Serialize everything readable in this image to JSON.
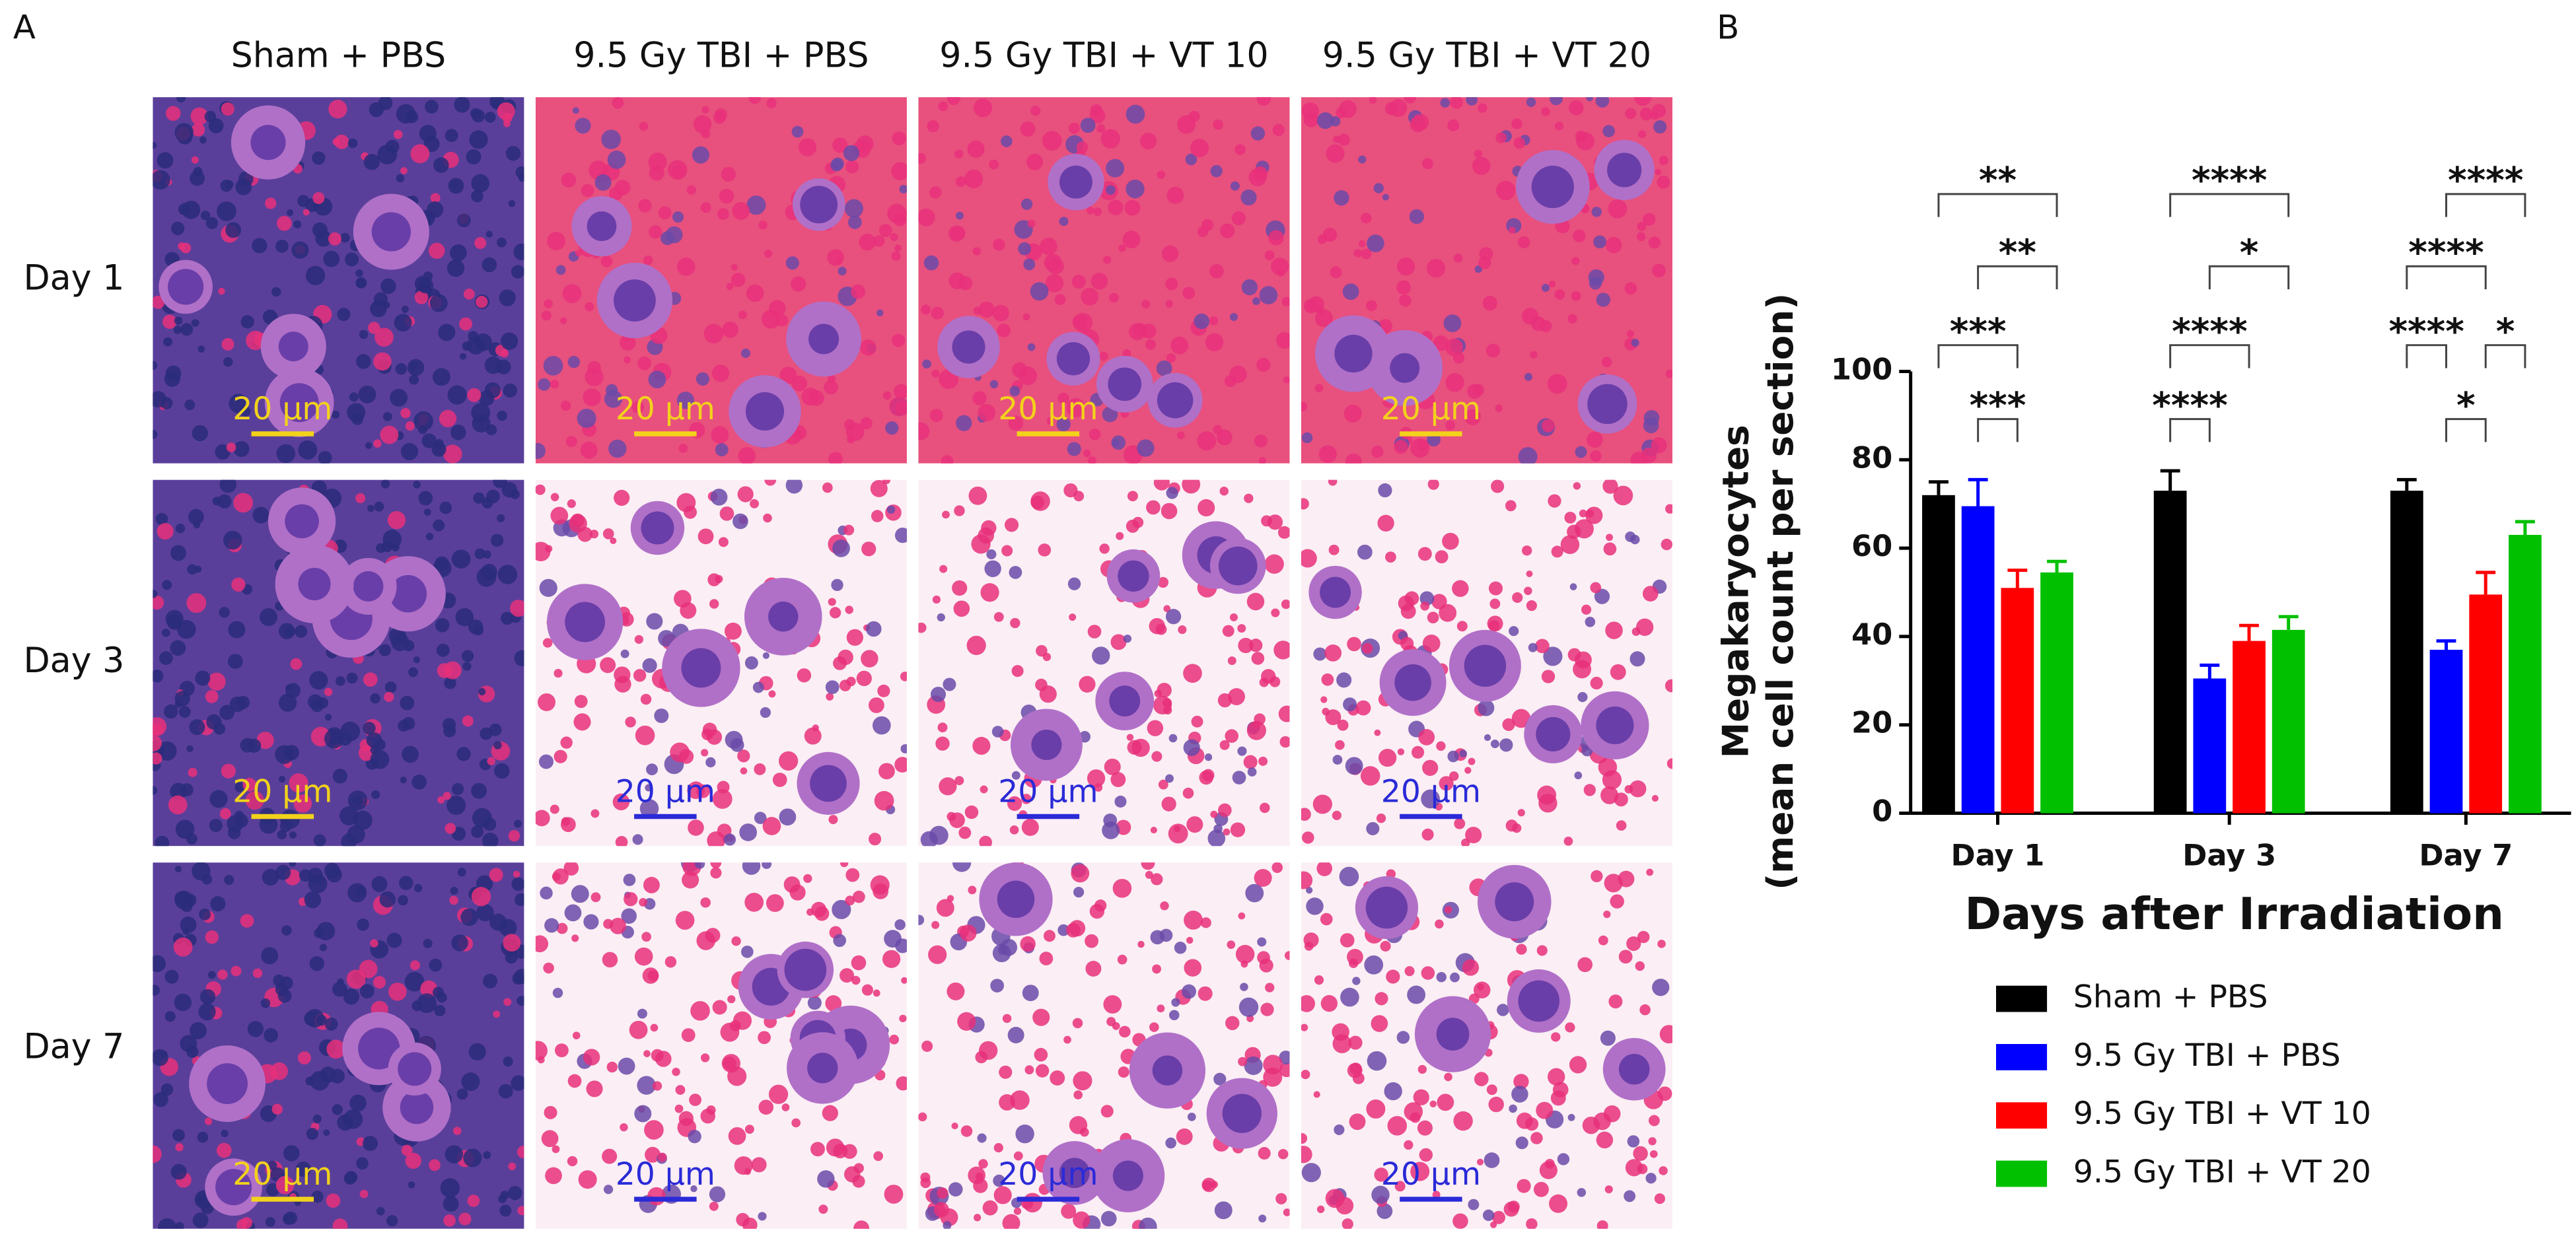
{
  "panel_a": {
    "label": "A",
    "columns": [
      "Sham + PBS",
      "9.5 Gy TBI + PBS",
      "9.5 Gy TBI + VT 10",
      "9.5 Gy TBI + VT 20"
    ],
    "rows": [
      "Day 1",
      "Day 3",
      "Day 7"
    ],
    "tiles": [
      [
        {
          "scale_bar": "20 µm",
          "color": "#f2d21b"
        },
        {
          "scale_bar": "20 µm",
          "color": "#f2d21b"
        },
        {
          "scale_bar": "20 µm",
          "color": "#f2d21b"
        },
        {
          "scale_bar": "20 µm",
          "color": "#f2d21b"
        }
      ],
      [
        {
          "scale_bar": "20 µm",
          "color": "#f2d21b"
        },
        {
          "scale_bar": "20 µm",
          "color": "#2a2ad8"
        },
        {
          "scale_bar": "20 µm",
          "color": "#2a2ad8"
        },
        {
          "scale_bar": "20 µm",
          "color": "#2a2ad8"
        }
      ],
      [
        {
          "scale_bar": "20 µm",
          "color": "#f2d21b"
        },
        {
          "scale_bar": "20 µm",
          "color": "#2a2ad8"
        },
        {
          "scale_bar": "20 µm",
          "color": "#2a2ad8"
        },
        {
          "scale_bar": "20 µm",
          "color": "#2a2ad8"
        }
      ]
    ]
  },
  "chart_data": {
    "type": "bar",
    "panel_label": "B",
    "x_label": "Days after Irradiation",
    "y_label": [
      "Megakaryocytes",
      "(mean cell count per section)"
    ],
    "categories": [
      "Day 1",
      "Day 3",
      "Day 7"
    ],
    "series": [
      {
        "name": "Sham + PBS",
        "color": "#000000",
        "values": [
          72,
          73,
          73
        ],
        "errors": [
          3,
          4.5,
          2.5
        ]
      },
      {
        "name": "9.5 Gy TBI + PBS",
        "color": "#0000ff",
        "values": [
          69.5,
          30.5,
          37
        ],
        "errors": [
          6,
          3,
          2
        ]
      },
      {
        "name": "9.5 Gy TBI + VT 10",
        "color": "#ff0000",
        "values": [
          51,
          39,
          49.5
        ],
        "errors": [
          4,
          3.5,
          5
        ]
      },
      {
        "name": "9.5 Gy TBI + VT 20",
        "color": "#00c000",
        "values": [
          54.5,
          41.5,
          63
        ],
        "errors": [
          2.5,
          3,
          3
        ]
      }
    ],
    "ylim": [
      0,
      100
    ],
    "yticks": [
      0,
      20,
      40,
      60,
      80,
      100
    ],
    "legend": "bottom",
    "significance": [
      [
        [
          {
            "pair": [
              1,
              2
            ],
            "label": "***"
          }
        ],
        [
          {
            "pair": [
              0,
              2
            ],
            "label": "***"
          }
        ],
        [
          {
            "pair": [
              1,
              3
            ],
            "label": "**"
          }
        ],
        [
          {
            "pair": [
              0,
              3
            ],
            "label": "**"
          }
        ]
      ],
      [
        [
          {
            "pair": [
              0,
              1
            ],
            "label": "****"
          }
        ],
        [
          {
            "pair": [
              0,
              2
            ],
            "label": "****"
          }
        ],
        [
          {
            "pair": [
              1,
              3
            ],
            "label": "*"
          }
        ],
        [
          {
            "pair": [
              0,
              3
            ],
            "label": "****"
          }
        ]
      ],
      [
        [
          {
            "pair": [
              1,
              2
            ],
            "label": "*"
          }
        ],
        [
          {
            "pair": [
              0,
              1
            ],
            "label": "****"
          },
          {
            "pair": [
              2,
              3
            ],
            "label": "*"
          }
        ],
        [
          {
            "pair": [
              0,
              2
            ],
            "label": "****"
          }
        ],
        [
          {
            "pair": [
              1,
              3
            ],
            "label": "****"
          }
        ]
      ]
    ]
  }
}
